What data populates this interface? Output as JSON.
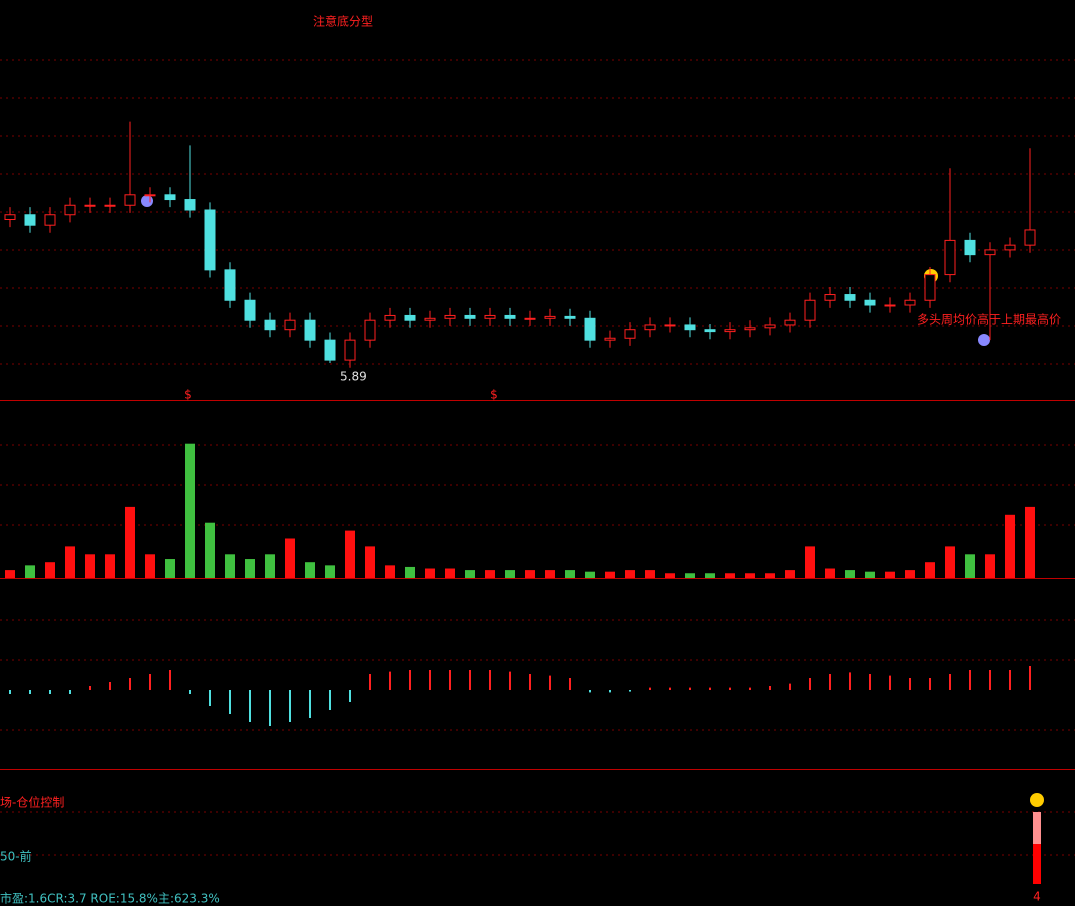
{
  "chart_data": [
    {
      "type": "candlestick",
      "ylim": [
        5.5,
        9.5
      ],
      "open": [
        7.4,
        7.45,
        7.34,
        7.45,
        7.55,
        7.55,
        7.55,
        7.66,
        7.66,
        7.61,
        7.5,
        6.87,
        6.55,
        6.34,
        6.24,
        6.34,
        6.13,
        5.92,
        6.13,
        6.34,
        6.39,
        6.34,
        6.36,
        6.39,
        6.36,
        6.39,
        6.36,
        6.36,
        6.38,
        6.36,
        6.13,
        6.15,
        6.24,
        6.29,
        6.29,
        6.24,
        6.22,
        6.24,
        6.26,
        6.29,
        6.34,
        6.55,
        6.61,
        6.55,
        6.5,
        6.5,
        6.55,
        6.82,
        7.18,
        7.03,
        7.08,
        7.13
      ],
      "close": [
        7.45,
        7.34,
        7.45,
        7.55,
        7.55,
        7.55,
        7.66,
        7.66,
        7.61,
        7.5,
        6.87,
        6.55,
        6.34,
        6.24,
        6.34,
        6.13,
        5.92,
        6.13,
        6.34,
        6.39,
        6.34,
        6.36,
        6.39,
        6.36,
        6.39,
        6.36,
        6.36,
        6.38,
        6.36,
        6.13,
        6.15,
        6.24,
        6.29,
        6.29,
        6.24,
        6.22,
        6.24,
        6.26,
        6.29,
        6.34,
        6.55,
        6.61,
        6.55,
        6.5,
        6.5,
        6.55,
        6.82,
        7.18,
        7.03,
        7.08,
        7.13,
        7.29
      ],
      "high": [
        7.53,
        7.53,
        7.53,
        7.63,
        7.63,
        7.63,
        8.43,
        7.74,
        7.74,
        8.18,
        7.58,
        6.95,
        6.63,
        6.42,
        6.42,
        6.42,
        6.21,
        6.21,
        6.42,
        6.47,
        6.47,
        6.44,
        6.47,
        6.47,
        6.47,
        6.47,
        6.44,
        6.46,
        6.46,
        6.44,
        6.23,
        6.32,
        6.37,
        6.37,
        6.37,
        6.3,
        6.32,
        6.34,
        6.37,
        6.42,
        6.63,
        6.69,
        6.69,
        6.63,
        6.58,
        6.63,
        6.9,
        7.94,
        7.26,
        7.16,
        7.21,
        8.15
      ],
      "low": [
        7.32,
        7.26,
        7.26,
        7.37,
        7.47,
        7.47,
        7.47,
        7.58,
        7.53,
        7.42,
        6.79,
        6.47,
        6.26,
        6.16,
        6.16,
        6.05,
        5.89,
        5.84,
        6.05,
        6.26,
        6.26,
        6.26,
        6.28,
        6.28,
        6.28,
        6.28,
        6.28,
        6.28,
        6.28,
        6.05,
        6.05,
        6.07,
        6.16,
        6.21,
        6.16,
        6.14,
        6.14,
        6.16,
        6.18,
        6.21,
        6.26,
        6.47,
        6.47,
        6.42,
        6.42,
        6.42,
        6.47,
        6.74,
        6.95,
        6.13,
        7.0,
        7.05
      ]
    },
    {
      "type": "bar",
      "ylim": [
        0,
        100
      ],
      "values": [
        5,
        8,
        10,
        20,
        15,
        15,
        45,
        15,
        12,
        85,
        35,
        15,
        12,
        15,
        25,
        10,
        8,
        30,
        20,
        8,
        7,
        6,
        6,
        5,
        5,
        5,
        5,
        5,
        5,
        4,
        4,
        5,
        5,
        3,
        3,
        3,
        3,
        3,
        3,
        5,
        20,
        6,
        5,
        4,
        4,
        5,
        10,
        20,
        15,
        15,
        40,
        45
      ]
    },
    {
      "type": "bar",
      "ylim": [
        -10,
        11.25
      ],
      "values": [
        -0.5,
        -0.5,
        -0.5,
        -0.5,
        0.5,
        1,
        1.5,
        2,
        2.5,
        -0.5,
        -2,
        -3,
        -4,
        -4.5,
        -4,
        -3.5,
        -2.5,
        -1.5,
        2,
        2.3,
        2.5,
        2.5,
        2.5,
        2.5,
        2.5,
        2.3,
        2,
        1.8,
        1.5,
        -0.3,
        -0.3,
        -0.2,
        0.3,
        0.3,
        0.3,
        0.3,
        0.3,
        0.3,
        0.5,
        0.8,
        1.5,
        2,
        2.2,
        2,
        1.8,
        1.5,
        1.5,
        2,
        2.5,
        2.5,
        2.5,
        3
      ]
    }
  ],
  "annotations": {
    "pattern": "注意底分型",
    "low": "5.89",
    "signal": "多头周均价高于上期最高价",
    "marker_a": "$",
    "marker_b": "$"
  },
  "footer": {
    "position": "场-仓位控制",
    "period": "50-前",
    "stats": "市盈:1.6CR:3.7 ROE:15.8%主:623.3%",
    "gauge": "4"
  }
}
